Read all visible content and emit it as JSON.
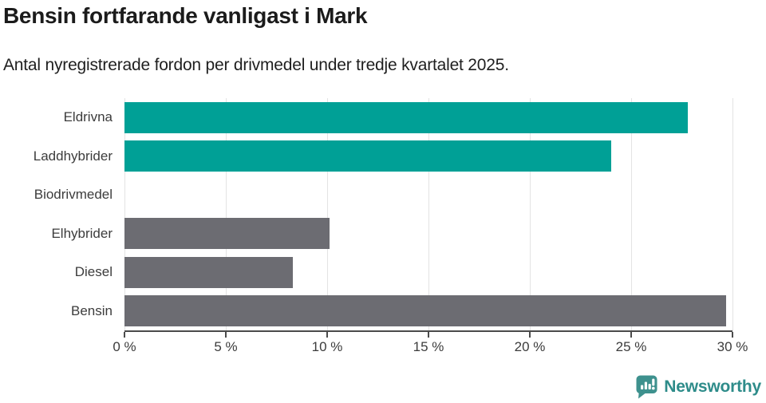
{
  "header": {
    "title": "Bensin fortfarande vanligast i Mark",
    "subtitle": "Antal nyregistrerade fordon per drivmedel under tredje kvartalet 2025."
  },
  "chart_data": {
    "type": "bar",
    "orientation": "horizontal",
    "title": "Bensin fortfarande vanligast i Mark",
    "subtitle": "Antal nyregistrerade fordon per drivmedel under tredje kvartalet 2025.",
    "categories": [
      "Eldrivna",
      "Laddhybrider",
      "Biodrivmedel",
      "Elhybrider",
      "Diesel",
      "Bensin"
    ],
    "values": [
      27.8,
      24.0,
      0,
      10.1,
      8.3,
      29.7
    ],
    "unit": "%",
    "bar_colors": [
      "#00A096",
      "#00A096",
      "#00A096",
      "#6C6C72",
      "#6C6C72",
      "#6C6C72"
    ],
    "xlim": [
      0,
      30
    ],
    "x_ticks": [
      0,
      5,
      10,
      15,
      20,
      25,
      30
    ],
    "x_tick_labels": [
      "0 %",
      "5 %",
      "10 %",
      "15 %",
      "20 %",
      "25 %",
      "30 %"
    ],
    "grid": true,
    "legend": false,
    "xlabel": "",
    "ylabel": ""
  },
  "footer": {
    "brand": "Newsworthy"
  },
  "colors": {
    "bar_teal": "#00A096",
    "bar_gray": "#6C6C72",
    "gridline": "#E3E3E3",
    "axis": "#4B4B4B",
    "title_text": "#1B1B1B",
    "subtitle_text": "#1F1F1F",
    "label_text": "#3C3C3C",
    "logo_icon": "#3E918E",
    "logo_text": "#2E8C8A",
    "background": "#FFFFFF"
  }
}
